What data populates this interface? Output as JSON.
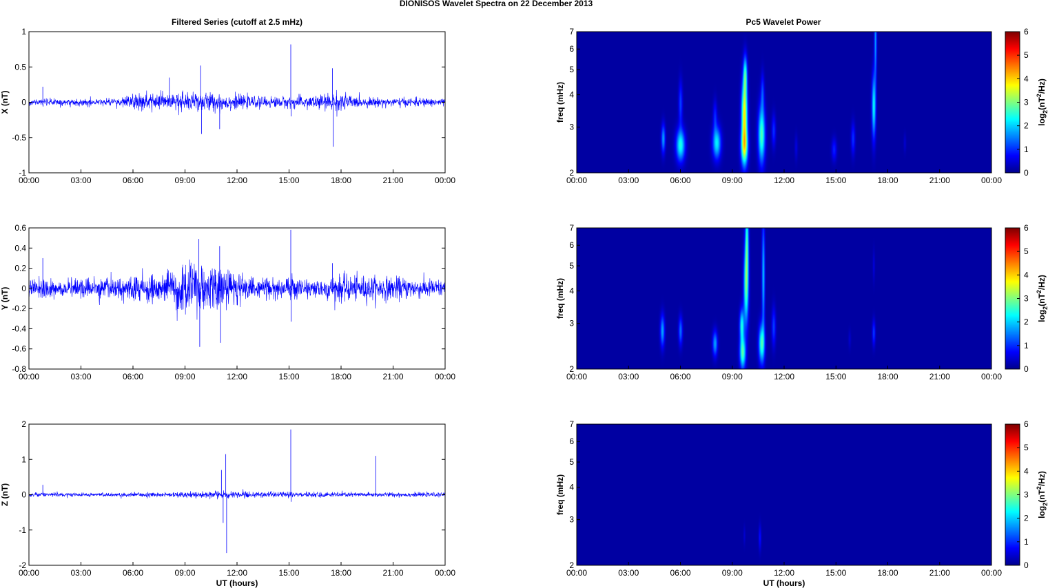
{
  "figure": {
    "title": "DIONISOS Wavelet Spectra on 22 December  2013",
    "left_title": "Filtered Series (cutoff at 2.5 mHz)",
    "right_title": "Pc5 Wavelet Power"
  },
  "colors": {
    "series": "#0000ff",
    "background": "#ffffff",
    "axis": "#000000",
    "colormap": [
      "#00008f",
      "#0000ff",
      "#00ffff",
      "#ffff00",
      "#ff0000",
      "#800000"
    ]
  },
  "chart_data": [
    {
      "type": "line",
      "component": "X",
      "ylabel": "X (nT)",
      "xlabel": "",
      "xticks": [
        "00:00",
        "03:00",
        "06:00",
        "09:00",
        "12:00",
        "15:00",
        "18:00",
        "21:00",
        "00:00"
      ],
      "xlim_hours": [
        0,
        24
      ],
      "ylim": [
        -1,
        1
      ],
      "yticks": [
        "1",
        "0.5",
        "0",
        "-0.5",
        "-1"
      ],
      "ytick_values": [
        1,
        0.5,
        0,
        -0.5,
        -1
      ],
      "noise_profile": [
        [
          0,
          0.04
        ],
        [
          5,
          0.05
        ],
        [
          6,
          0.1
        ],
        [
          8,
          0.12
        ],
        [
          9.5,
          0.14
        ],
        [
          11,
          0.11
        ],
        [
          13,
          0.07
        ],
        [
          15,
          0.07
        ],
        [
          17,
          0.1
        ],
        [
          18,
          0.13
        ],
        [
          19,
          0.06
        ],
        [
          24,
          0.05
        ]
      ],
      "spikes": [
        [
          0.8,
          0.22
        ],
        [
          8.1,
          0.35
        ],
        [
          9.9,
          0.52
        ],
        [
          9.95,
          -0.45
        ],
        [
          11,
          -0.38
        ],
        [
          15.1,
          0.82
        ],
        [
          15.12,
          -0.2
        ],
        [
          17.5,
          0.48
        ],
        [
          17.55,
          -0.63
        ]
      ]
    },
    {
      "type": "line",
      "component": "Y",
      "ylabel": "Y (nT)",
      "xlabel": "",
      "xticks": [
        "00:00",
        "03:00",
        "06:00",
        "09:00",
        "12:00",
        "15:00",
        "18:00",
        "21:00",
        "00:00"
      ],
      "xlim_hours": [
        0,
        24
      ],
      "ylim": [
        -0.8,
        0.6
      ],
      "yticks": [
        "0.6",
        "0.4",
        "0.2",
        "0",
        "-0.2",
        "-0.4",
        "-0.6",
        "-0.8"
      ],
      "ytick_values": [
        0.6,
        0.4,
        0.2,
        0,
        -0.2,
        -0.4,
        -0.6,
        -0.8
      ],
      "noise_profile": [
        [
          0,
          0.08
        ],
        [
          5,
          0.09
        ],
        [
          7,
          0.12
        ],
        [
          9,
          0.2
        ],
        [
          10,
          0.22
        ],
        [
          11,
          0.18
        ],
        [
          13,
          0.1
        ],
        [
          17,
          0.1
        ],
        [
          18,
          0.12
        ],
        [
          24,
          0.08
        ]
      ],
      "spikes": [
        [
          0.8,
          0.3
        ],
        [
          9.8,
          0.49
        ],
        [
          9.85,
          -0.58
        ],
        [
          11,
          0.42
        ],
        [
          11.05,
          -0.54
        ],
        [
          15.1,
          0.58
        ],
        [
          15.12,
          -0.33
        ],
        [
          17.5,
          0.25
        ]
      ]
    },
    {
      "type": "line",
      "component": "Z",
      "ylabel": "Z (nT)",
      "xlabel": "UT (hours)",
      "xticks": [
        "00:00",
        "03:00",
        "06:00",
        "09:00",
        "12:00",
        "15:00",
        "18:00",
        "21:00",
        "00:00"
      ],
      "xlim_hours": [
        0,
        24
      ],
      "ylim": [
        -2,
        2
      ],
      "yticks": [
        "2",
        "1",
        "0",
        "-1",
        "-2"
      ],
      "ytick_values": [
        2,
        1,
        0,
        -1,
        -2
      ],
      "noise_profile": [
        [
          0,
          0.05
        ],
        [
          8,
          0.06
        ],
        [
          10,
          0.09
        ],
        [
          12,
          0.08
        ],
        [
          15,
          0.07
        ],
        [
          24,
          0.05
        ]
      ],
      "spikes": [
        [
          0.8,
          0.28
        ],
        [
          11.1,
          0.7
        ],
        [
          11.2,
          -0.8
        ],
        [
          11.35,
          1.15
        ],
        [
          11.4,
          -1.65
        ],
        [
          15.1,
          1.85
        ],
        [
          15.12,
          -0.2
        ],
        [
          20,
          1.1
        ]
      ]
    },
    {
      "type": "heatmap",
      "component": "X",
      "ylabel": "freq (mHz)",
      "xlabel": "",
      "yscale": "log",
      "ylim": [
        2,
        7
      ],
      "yticks": [
        "7",
        "6",
        "5",
        "4",
        "3",
        "2"
      ],
      "ytick_values": [
        7,
        6,
        5,
        4,
        3,
        2
      ],
      "xticks": [
        "00:00",
        "03:00",
        "06:00",
        "09:00",
        "12:00",
        "15:00",
        "18:00",
        "21:00",
        "00:00"
      ],
      "xlim_hours": [
        0,
        24
      ],
      "colorbar": {
        "label_main": "log",
        "label_sub": "2",
        "label_rest": "(nT",
        "label_sup": "2",
        "label_end": "/Hz)",
        "range": [
          0,
          6
        ],
        "ticks": [
          "6",
          "5",
          "4",
          "3",
          "2",
          "1",
          "0"
        ]
      },
      "features": [
        {
          "t": 5.0,
          "f": 2.7,
          "sigT": 0.08,
          "sigF": 0.09,
          "p": 1.6
        },
        {
          "t": 6.0,
          "f": 2.55,
          "sigT": 0.18,
          "sigF": 0.1,
          "p": 2.3
        },
        {
          "t": 6.0,
          "f": 3.7,
          "sigT": 0.08,
          "sigF": 0.14,
          "p": 1.0
        },
        {
          "t": 8.1,
          "f": 2.6,
          "sigT": 0.17,
          "sigF": 0.1,
          "p": 2.1
        },
        {
          "t": 8.0,
          "f": 3.3,
          "sigT": 0.08,
          "sigF": 0.1,
          "p": 0.8
        },
        {
          "t": 9.7,
          "f": 2.5,
          "sigT": 0.14,
          "sigF": 0.12,
          "p": 2.9
        },
        {
          "t": 9.7,
          "f": 3.4,
          "sigT": 0.12,
          "sigF": 0.2,
          "p": 3.6
        },
        {
          "t": 9.75,
          "f": 4.8,
          "sigT": 0.08,
          "sigF": 0.12,
          "p": 2.0
        },
        {
          "t": 10.7,
          "f": 2.8,
          "sigT": 0.14,
          "sigF": 0.18,
          "p": 2.6
        },
        {
          "t": 10.75,
          "f": 4.1,
          "sigT": 0.07,
          "sigF": 0.12,
          "p": 0.9
        },
        {
          "t": 11.4,
          "f": 2.9,
          "sigT": 0.08,
          "sigF": 0.1,
          "p": 0.9
        },
        {
          "t": 12.7,
          "f": 2.5,
          "sigT": 0.06,
          "sigF": 0.08,
          "p": 0.4
        },
        {
          "t": 14.9,
          "f": 2.45,
          "sigT": 0.1,
          "sigF": 0.07,
          "p": 0.8
        },
        {
          "t": 16.0,
          "f": 2.7,
          "sigT": 0.08,
          "sigF": 0.1,
          "p": 0.9
        },
        {
          "t": 17.2,
          "f": 3.6,
          "sigT": 0.08,
          "sigF": 0.2,
          "p": 2.2
        },
        {
          "t": 17.3,
          "f": 6.5,
          "sigT": 0.05,
          "sigF": 0.25,
          "p": 1.6
        },
        {
          "t": 19.0,
          "f": 2.6,
          "sigT": 0.05,
          "sigF": 0.06,
          "p": 0.3
        }
      ]
    },
    {
      "type": "heatmap",
      "component": "Y",
      "ylabel": "freq (mHz)",
      "xlabel": "",
      "yscale": "log",
      "ylim": [
        2,
        7
      ],
      "yticks": [
        "7",
        "6",
        "5",
        "4",
        "3",
        "2"
      ],
      "ytick_values": [
        7,
        6,
        5,
        4,
        3,
        2
      ],
      "xticks": [
        "00:00",
        "03:00",
        "06:00",
        "09:00",
        "12:00",
        "15:00",
        "18:00",
        "21:00",
        "00:00"
      ],
      "xlim_hours": [
        0,
        24
      ],
      "colorbar": {
        "label_main": "log",
        "label_sub": "2",
        "label_rest": "(nT",
        "label_sup": "2",
        "label_end": "/Hz)",
        "range": [
          0,
          6
        ],
        "ticks": [
          "6",
          "5",
          "4",
          "3",
          "2",
          "1",
          "0"
        ]
      },
      "features": [
        {
          "t": 4.95,
          "f": 2.8,
          "sigT": 0.09,
          "sigF": 0.1,
          "p": 1.6
        },
        {
          "t": 6.0,
          "f": 2.8,
          "sigT": 0.08,
          "sigF": 0.09,
          "p": 1.3
        },
        {
          "t": 8.0,
          "f": 2.5,
          "sigT": 0.1,
          "sigF": 0.08,
          "p": 1.6
        },
        {
          "t": 9.6,
          "f": 2.3,
          "sigT": 0.12,
          "sigF": 0.1,
          "p": 2.6
        },
        {
          "t": 9.55,
          "f": 2.95,
          "sigT": 0.09,
          "sigF": 0.1,
          "p": 2.2
        },
        {
          "t": 9.8,
          "f": 4.2,
          "sigT": 0.1,
          "sigF": 0.25,
          "p": 2.6
        },
        {
          "t": 9.85,
          "f": 6.5,
          "sigT": 0.07,
          "sigF": 0.25,
          "p": 2.0
        },
        {
          "t": 10.7,
          "f": 2.5,
          "sigT": 0.12,
          "sigF": 0.12,
          "p": 2.5
        },
        {
          "t": 10.8,
          "f": 4.6,
          "sigT": 0.06,
          "sigF": 0.35,
          "p": 1.8
        },
        {
          "t": 11.4,
          "f": 2.9,
          "sigT": 0.08,
          "sigF": 0.12,
          "p": 1.0
        },
        {
          "t": 17.2,
          "f": 2.75,
          "sigT": 0.06,
          "sigF": 0.08,
          "p": 1.0
        },
        {
          "t": 17.2,
          "f": 5.0,
          "sigT": 0.04,
          "sigF": 0.1,
          "p": 0.4
        },
        {
          "t": 15.8,
          "f": 2.6,
          "sigT": 0.05,
          "sigF": 0.06,
          "p": 0.3
        }
      ]
    },
    {
      "type": "heatmap",
      "component": "Z",
      "ylabel": "freq (mHz)",
      "xlabel": "UT (hours)",
      "yscale": "log",
      "ylim": [
        2,
        7
      ],
      "yticks": [
        "7",
        "6",
        "5",
        "4",
        "3",
        "2"
      ],
      "ytick_values": [
        7,
        6,
        5,
        4,
        3,
        2
      ],
      "xticks": [
        "00:00",
        "03:00",
        "06:00",
        "09:00",
        "12:00",
        "15:00",
        "18:00",
        "21:00",
        "00:00"
      ],
      "xlim_hours": [
        0,
        24
      ],
      "colorbar": {
        "label_main": "log",
        "label_sub": "2",
        "label_rest": "(nT",
        "label_sup": "2",
        "label_end": "/Hz)",
        "range": [
          0,
          6
        ],
        "ticks": [
          "6",
          "5",
          "4",
          "3",
          "2",
          "1",
          "0"
        ]
      },
      "features": [
        {
          "t": 10.6,
          "f": 2.55,
          "sigT": 0.05,
          "sigF": 0.08,
          "p": 0.7
        },
        {
          "t": 9.7,
          "f": 2.6,
          "sigT": 0.04,
          "sigF": 0.06,
          "p": 0.3
        }
      ]
    }
  ]
}
